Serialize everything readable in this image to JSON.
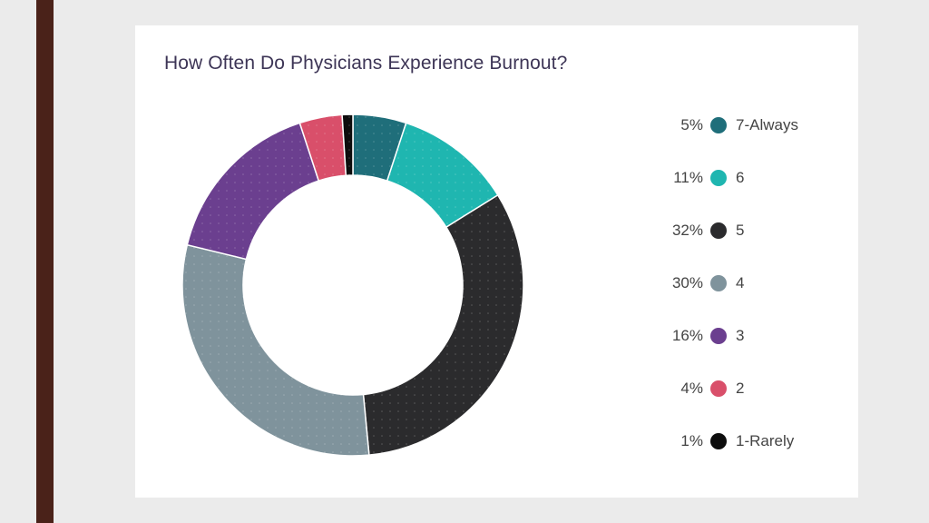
{
  "chart_data": {
    "type": "pie",
    "title": "How Often Do Physicians Experience Burnout?",
    "donut": true,
    "legend_position": "right",
    "slices": [
      {
        "label": "7-Always",
        "value": 5,
        "value_label": "5%",
        "color": "#1f6e7a"
      },
      {
        "label": "6",
        "value": 11,
        "value_label": "11%",
        "color": "#1fb6b0"
      },
      {
        "label": "5",
        "value": 32,
        "value_label": "32%",
        "color": "#2b2b2d"
      },
      {
        "label": "4",
        "value": 30,
        "value_label": "30%",
        "color": "#7f939c"
      },
      {
        "label": "3",
        "value": 16,
        "value_label": "16%",
        "color": "#6b3f8f"
      },
      {
        "label": "2",
        "value": 4,
        "value_label": "4%",
        "color": "#d94f6a"
      },
      {
        "label": "1-Rarely",
        "value": 1,
        "value_label": "1%",
        "color": "#0d0d0d"
      }
    ]
  }
}
